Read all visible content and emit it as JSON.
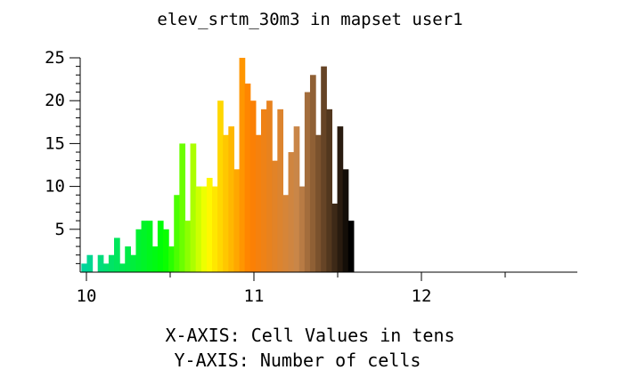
{
  "chart_data": {
    "type": "bar",
    "title": "elev_srtm_30m3 in mapset user1",
    "xlabel": "X-AXIS: Cell Values in tens",
    "ylabel": "Y-AXIS: Number of cells",
    "x_ticks": [
      "10",
      "11",
      "12"
    ],
    "y_ticks": [
      "5",
      "10",
      "15",
      "20",
      "25"
    ],
    "xlim": [
      9.97,
      13.0
    ],
    "ylim": [
      0,
      25
    ],
    "bin_width": 0.0325,
    "bin_start": 9.97,
    "values": [
      1,
      2,
      0,
      2,
      1,
      2,
      4,
      1,
      3,
      2,
      5,
      6,
      6,
      3,
      6,
      5,
      3,
      9,
      15,
      6,
      15,
      10,
      10,
      11,
      10,
      20,
      16,
      17,
      12,
      25,
      22,
      20,
      16,
      19,
      20,
      13,
      19,
      9,
      14,
      17,
      10,
      21,
      23,
      16,
      24,
      19,
      8,
      17,
      12,
      6
    ],
    "grid": false,
    "color_ramp": [
      "#00d49a",
      "#00ff00",
      "#ffff00",
      "#ff8000",
      "#c8864a",
      "#000000"
    ]
  }
}
